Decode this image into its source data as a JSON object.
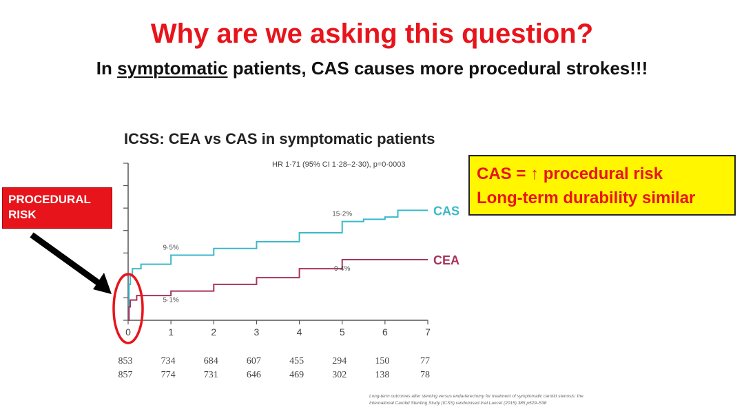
{
  "slide": {
    "title": "Why are we asking this question?",
    "subtitle_pre": "In ",
    "subtitle_underlined": "symptomatic",
    "subtitle_post": " patients, CAS causes more procedural strokes!!!",
    "callout_red": "PROCEDURAL RISK",
    "callout_yellow": [
      "CAS = ↑ procedural risk",
      "Long-term durability similar"
    ],
    "citation": [
      "Long-term outcomes after stenting versus endarterectomy for treatment of symptomatic carotid stenosis: the",
      "International Carotid Stenting Study (ICSS) randomised trial    Lancet (2015) 385 p529–538"
    ]
  },
  "colors": {
    "red": "#e8141b",
    "yellow": "#fff600",
    "cas": "#3bb8c9",
    "cea": "#a8345a",
    "axis": "#555555"
  },
  "chart_data": {
    "type": "line",
    "title": "ICSS: CEA vs CAS in symptomatic patients",
    "annotation": "HR 1·71 (95% CI 1·28–2·30), p=0·0003",
    "xlim": [
      0,
      7
    ],
    "ylim": [
      0,
      7
    ],
    "x_ticks": [
      "0",
      "1",
      "2",
      "3",
      "4",
      "5",
      "6",
      "7"
    ],
    "series": [
      {
        "name": "CAS",
        "color": "#3bb8c9",
        "x": [
          0,
          0.02,
          0.05,
          0.1,
          0.3,
          1,
          2,
          3,
          4,
          5,
          5.5,
          6,
          6.3,
          7
        ],
        "y": [
          0,
          1.6,
          2.0,
          2.3,
          2.5,
          2.9,
          3.2,
          3.5,
          3.9,
          4.4,
          4.5,
          4.6,
          4.9,
          4.9
        ],
        "labels": [
          {
            "x": 1,
            "y": 2.9,
            "text": "9·5%"
          },
          {
            "x": 5,
            "y": 4.4,
            "text": "15·2%"
          }
        ],
        "at_risk": [
          "853",
          "734",
          "684",
          "607",
          "455",
          "294",
          "150",
          "77"
        ]
      },
      {
        "name": "CEA",
        "color": "#a8345a",
        "x": [
          0,
          0.02,
          0.05,
          0.2,
          1,
          2,
          3,
          4,
          5,
          6,
          7
        ],
        "y": [
          0,
          0.6,
          0.9,
          1.1,
          1.3,
          1.6,
          1.9,
          2.3,
          2.7,
          2.7,
          2.7
        ],
        "labels": [
          {
            "x": 1,
            "y": 1.3,
            "text": "5·1%"
          },
          {
            "x": 5,
            "y": 2.7,
            "text": "9·4%"
          }
        ],
        "at_risk": [
          "857",
          "774",
          "731",
          "646",
          "469",
          "302",
          "138",
          "78"
        ]
      }
    ]
  }
}
